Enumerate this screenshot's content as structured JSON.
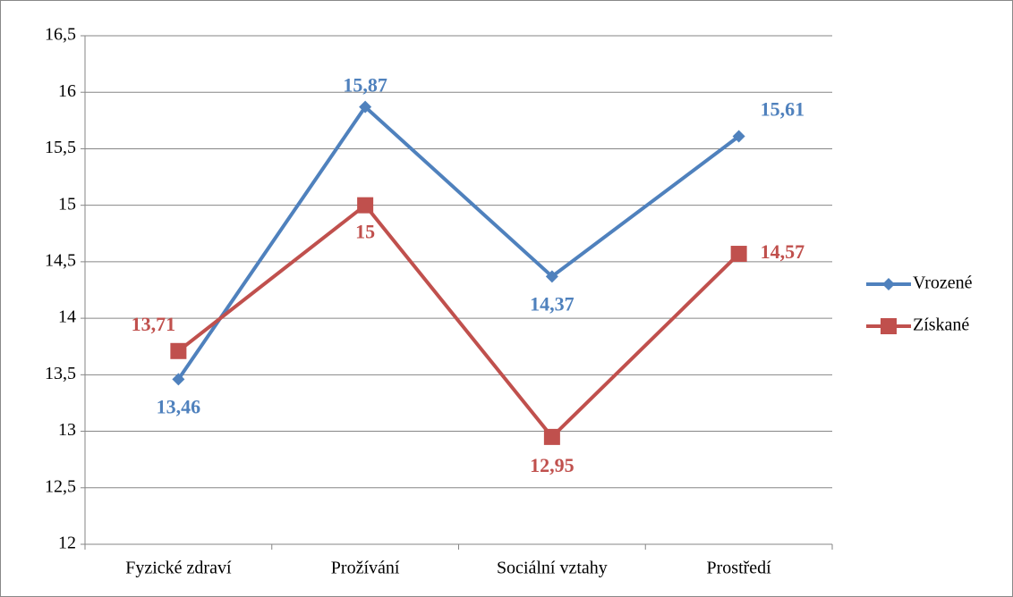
{
  "chart_data": {
    "type": "line",
    "categories": [
      "Fyzické zdraví",
      "Prožívání",
      "Sociální vztahy",
      "Prostředí"
    ],
    "series": [
      {
        "name": "Vrozené",
        "color": "#4f81bd",
        "marker": "diamond",
        "values": [
          13.46,
          15.87,
          14.37,
          15.61
        ],
        "value_labels": [
          "13,46",
          "15,87",
          "14,37",
          "15,61"
        ]
      },
      {
        "name": "Získané",
        "color": "#c0504d",
        "marker": "square",
        "values": [
          13.71,
          15,
          12.95,
          14.57
        ],
        "value_labels": [
          "13,71",
          "15",
          "12,95",
          "14,57"
        ]
      }
    ],
    "ylim": [
      12,
      16.5
    ],
    "yticks": [
      12,
      {
        "value": 12.5,
        "label": "12,5"
      },
      13,
      {
        "value": 13.5,
        "label": "13,5"
      },
      14,
      {
        "value": 14.5,
        "label": "14,5"
      },
      15,
      {
        "value": 15.5,
        "label": "15,5"
      },
      16,
      {
        "value": 16.5,
        "label": "16,5"
      }
    ],
    "grid": true,
    "legend": "right"
  }
}
